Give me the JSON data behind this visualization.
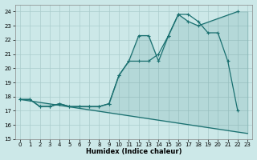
{
  "xlabel": "Humidex (Indice chaleur)",
  "bg_color": "#cce8e8",
  "grid_color": "#aacccc",
  "line_color": "#1a7070",
  "fill_color": "#1a7070",
  "xlim": [
    -0.5,
    23.5
  ],
  "ylim": [
    15,
    24.5
  ],
  "yticks": [
    15,
    16,
    17,
    18,
    19,
    20,
    21,
    22,
    23,
    24
  ],
  "xticks": [
    0,
    1,
    2,
    3,
    4,
    5,
    6,
    7,
    8,
    9,
    10,
    11,
    12,
    13,
    14,
    15,
    16,
    17,
    18,
    19,
    20,
    21,
    22,
    23
  ],
  "line1_x": [
    0,
    1,
    2,
    3,
    4,
    5,
    6,
    7,
    8,
    9,
    10,
    11,
    12,
    13,
    14,
    15,
    16,
    17,
    18,
    22
  ],
  "line1_y": [
    17.8,
    17.8,
    17.3,
    17.3,
    17.5,
    17.3,
    17.3,
    17.3,
    17.3,
    17.5,
    19.5,
    20.5,
    22.3,
    22.3,
    20.5,
    22.3,
    23.8,
    23.3,
    23.0,
    24.0
  ],
  "line2_x": [
    0,
    1,
    2,
    3,
    4,
    5,
    6,
    7,
    8,
    9,
    10,
    11,
    12,
    13,
    14,
    15,
    16,
    17,
    18,
    19,
    20,
    21,
    22
  ],
  "line2_y": [
    17.8,
    17.8,
    17.3,
    17.3,
    17.5,
    17.3,
    17.3,
    17.3,
    17.3,
    17.5,
    19.5,
    20.5,
    20.5,
    20.5,
    21.0,
    22.3,
    23.8,
    23.8,
    23.3,
    22.5,
    22.5,
    20.5,
    17.0
  ],
  "line3_x": [
    0,
    22,
    23
  ],
  "line3_y": [
    17.8,
    15.5,
    15.4
  ]
}
